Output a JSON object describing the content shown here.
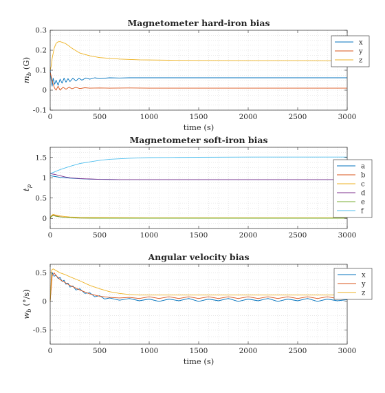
{
  "chart_data": [
    {
      "type": "line",
      "title": "Magnetometer hard-iron bias",
      "xlabel": "time (s)",
      "ylabel": "m_b (G)",
      "ylabel_main": "m",
      "ylabel_sub": "b",
      "ylabel_rest": " (G)",
      "xlim": [
        0,
        3000
      ],
      "ylim": [
        -0.1,
        0.3
      ],
      "xticks": [
        0,
        500,
        1000,
        1500,
        2000,
        2500,
        3000
      ],
      "yticks": [
        -0.1,
        0,
        0.1,
        0.2,
        0.3
      ],
      "ytick_labels": [
        "-0.1",
        "0",
        "0.1",
        "0.2",
        "0.3"
      ],
      "grid": true,
      "legend_position": "top-right",
      "series": [
        {
          "name": "x",
          "color": "#0072BD",
          "x": [
            0,
            10,
            20,
            30,
            45,
            60,
            80,
            100,
            120,
            140,
            160,
            180,
            200,
            230,
            260,
            290,
            320,
            360,
            400,
            450,
            500,
            600,
            700,
            800,
            1000,
            1500,
            2000,
            2500,
            3000
          ],
          "y": [
            0.1,
            0.05,
            0.02,
            0.06,
            0.03,
            0.05,
            0.025,
            0.055,
            0.035,
            0.06,
            0.04,
            0.058,
            0.043,
            0.06,
            0.046,
            0.06,
            0.05,
            0.061,
            0.055,
            0.062,
            0.058,
            0.062,
            0.061,
            0.062,
            0.062,
            0.062,
            0.062,
            0.062,
            0.062
          ]
        },
        {
          "name": "y",
          "color": "#D95319",
          "x": [
            0,
            10,
            20,
            30,
            45,
            60,
            80,
            100,
            130,
            160,
            190,
            220,
            260,
            300,
            350,
            400,
            500,
            600,
            800,
            1000,
            1500,
            2000,
            2500,
            3000
          ],
          "y": [
            0.09,
            0.07,
            0.05,
            0.03,
            0.01,
            0.0,
            0.02,
            0.0,
            0.015,
            0.005,
            0.015,
            0.007,
            0.014,
            0.008,
            0.012,
            0.01,
            0.011,
            0.01,
            0.011,
            0.01,
            0.01,
            0.01,
            0.01,
            0.01
          ]
        },
        {
          "name": "z",
          "color": "#EDB120",
          "x": [
            0,
            10,
            20,
            40,
            60,
            80,
            100,
            120,
            150,
            180,
            220,
            260,
            300,
            400,
            500,
            700,
            900,
            1200,
            1500,
            2000,
            2500,
            3000
          ],
          "y": [
            0.1,
            0.12,
            0.16,
            0.21,
            0.235,
            0.242,
            0.243,
            0.24,
            0.235,
            0.225,
            0.21,
            0.198,
            0.186,
            0.172,
            0.163,
            0.156,
            0.152,
            0.15,
            0.149,
            0.148,
            0.148,
            0.147
          ]
        }
      ]
    },
    {
      "type": "line",
      "title": "Magnetometer soft-iron bias",
      "xlabel": "",
      "ylabel": "t_p",
      "ylabel_main": "t",
      "ylabel_sub": "p",
      "ylabel_rest": "",
      "xlim": [
        0,
        3000
      ],
      "ylim": [
        -0.25,
        1.75
      ],
      "xticks": [
        0,
        500,
        1000,
        1500,
        2000,
        2500,
        3000
      ],
      "yticks": [
        0,
        0.5,
        1,
        1.5
      ],
      "ytick_labels": [
        "0",
        "0.5",
        "1",
        "1.5"
      ],
      "grid": true,
      "legend_position": "right",
      "series": [
        {
          "name": "a",
          "color": "#0072BD",
          "x": [
            0,
            50,
            100,
            200,
            300,
            400,
            500,
            700,
            1000,
            1500,
            2000,
            2500,
            3000
          ],
          "y": [
            1.05,
            1.03,
            1.01,
            0.99,
            0.975,
            0.965,
            0.96,
            0.955,
            0.955,
            0.955,
            0.955,
            0.955,
            0.955
          ]
        },
        {
          "name": "b",
          "color": "#D95319",
          "x": [
            0,
            10,
            30,
            60,
            100,
            150,
            200,
            300,
            500,
            1000,
            1500,
            2000,
            2500,
            3000
          ],
          "y": [
            0.0,
            0.05,
            0.08,
            0.06,
            0.04,
            0.025,
            0.015,
            0.01,
            0.005,
            0.005,
            0.005,
            0.005,
            0.005,
            0.005
          ]
        },
        {
          "name": "c",
          "color": "#EDB120",
          "x": [
            0,
            10,
            30,
            60,
            100,
            150,
            200,
            300,
            500,
            1000,
            1500,
            2000,
            2500,
            3000
          ],
          "y": [
            0.0,
            0.06,
            0.1,
            0.08,
            0.06,
            0.045,
            0.035,
            0.025,
            0.02,
            0.015,
            0.015,
            0.015,
            0.015,
            0.015
          ]
        },
        {
          "name": "d",
          "color": "#7E2F8E",
          "x": [
            0,
            50,
            100,
            150,
            200,
            300,
            400,
            500,
            700,
            1000,
            1500,
            2000,
            2500,
            3000
          ],
          "y": [
            1.1,
            1.08,
            1.05,
            1.02,
            1.0,
            0.98,
            0.97,
            0.96,
            0.955,
            0.955,
            0.955,
            0.955,
            0.955,
            0.955
          ]
        },
        {
          "name": "e",
          "color": "#77AC30",
          "x": [
            0,
            10,
            30,
            60,
            100,
            150,
            200,
            300,
            500,
            1000,
            1500,
            2000,
            2500,
            3000
          ],
          "y": [
            0.0,
            0.04,
            0.07,
            0.05,
            0.035,
            0.02,
            0.012,
            0.008,
            0.004,
            0.004,
            0.004,
            0.004,
            0.004,
            0.004
          ]
        },
        {
          "name": "f",
          "color": "#4DBEEE",
          "x": [
            0,
            100,
            200,
            300,
            400,
            500,
            600,
            800,
            1000,
            1200,
            1500,
            2000,
            2500,
            3000
          ],
          "y": [
            1.1,
            1.2,
            1.28,
            1.35,
            1.39,
            1.43,
            1.455,
            1.48,
            1.495,
            1.5,
            1.505,
            1.51,
            1.51,
            1.51
          ]
        }
      ]
    },
    {
      "type": "line",
      "title": "Angular velocity bias",
      "xlabel": "time (s)",
      "ylabel": "w_b (°/s)",
      "ylabel_main": "w",
      "ylabel_sub": "b",
      "ylabel_rest": " (°/s)",
      "xlim": [
        0,
        3000
      ],
      "ylim": [
        -0.75,
        0.65
      ],
      "xticks": [
        0,
        500,
        1000,
        1500,
        2000,
        2500,
        3000
      ],
      "yticks": [
        -0.5,
        0,
        0.5
      ],
      "ytick_labels": [
        "-0.5",
        "0",
        "0.5"
      ],
      "grid": true,
      "legend_position": "top-right",
      "series": [
        {
          "name": "x",
          "color": "#0072BD",
          "x": [
            0,
            20,
            40,
            60,
            80,
            100,
            120,
            140,
            160,
            180,
            200,
            230,
            260,
            300,
            350,
            400,
            450,
            500,
            550,
            600,
            700,
            800,
            900,
            1000,
            1100,
            1200,
            1300,
            1400,
            1500,
            1600,
            1700,
            1800,
            1900,
            2000,
            2100,
            2200,
            2300,
            2400,
            2500,
            2600,
            2700,
            2800,
            2900,
            3000
          ],
          "y": [
            0.0,
            0.5,
            0.44,
            0.46,
            0.4,
            0.42,
            0.35,
            0.37,
            0.3,
            0.32,
            0.25,
            0.27,
            0.2,
            0.22,
            0.14,
            0.15,
            0.08,
            0.1,
            0.04,
            0.06,
            0.02,
            0.05,
            0.01,
            0.04,
            0.0,
            0.04,
            0.01,
            0.05,
            0.0,
            0.04,
            0.01,
            0.05,
            0.0,
            0.04,
            0.01,
            0.05,
            0.0,
            0.04,
            0.01,
            0.05,
            0.0,
            0.04,
            0.01,
            0.03
          ]
        },
        {
          "name": "y",
          "color": "#D95319",
          "x": [
            0,
            20,
            40,
            60,
            80,
            100,
            150,
            200,
            300,
            400,
            500,
            600,
            700,
            800,
            900,
            1000,
            1100,
            1200,
            1300,
            1400,
            1500,
            1600,
            1700,
            1800,
            1900,
            2000,
            2100,
            2200,
            2300,
            2400,
            2500,
            2600,
            2700,
            2800,
            2900,
            3000
          ],
          "y": [
            0.0,
            0.45,
            0.5,
            0.45,
            0.42,
            0.38,
            0.33,
            0.28,
            0.2,
            0.13,
            0.09,
            0.07,
            0.06,
            0.07,
            0.05,
            0.08,
            0.05,
            0.08,
            0.05,
            0.08,
            0.05,
            0.08,
            0.05,
            0.08,
            0.05,
            0.08,
            0.05,
            0.08,
            0.05,
            0.08,
            0.05,
            0.08,
            0.05,
            0.08,
            0.05,
            0.07
          ]
        },
        {
          "name": "z",
          "color": "#EDB120",
          "x": [
            0,
            15,
            30,
            50,
            100,
            150,
            200,
            300,
            400,
            500,
            600,
            700,
            800,
            900,
            1000,
            1500,
            2000,
            2500,
            3000
          ],
          "y": [
            0.0,
            0.55,
            0.57,
            0.55,
            0.5,
            0.47,
            0.43,
            0.36,
            0.28,
            0.22,
            0.17,
            0.14,
            0.12,
            0.11,
            0.11,
            0.11,
            0.11,
            0.11,
            0.11
          ]
        }
      ]
    }
  ]
}
